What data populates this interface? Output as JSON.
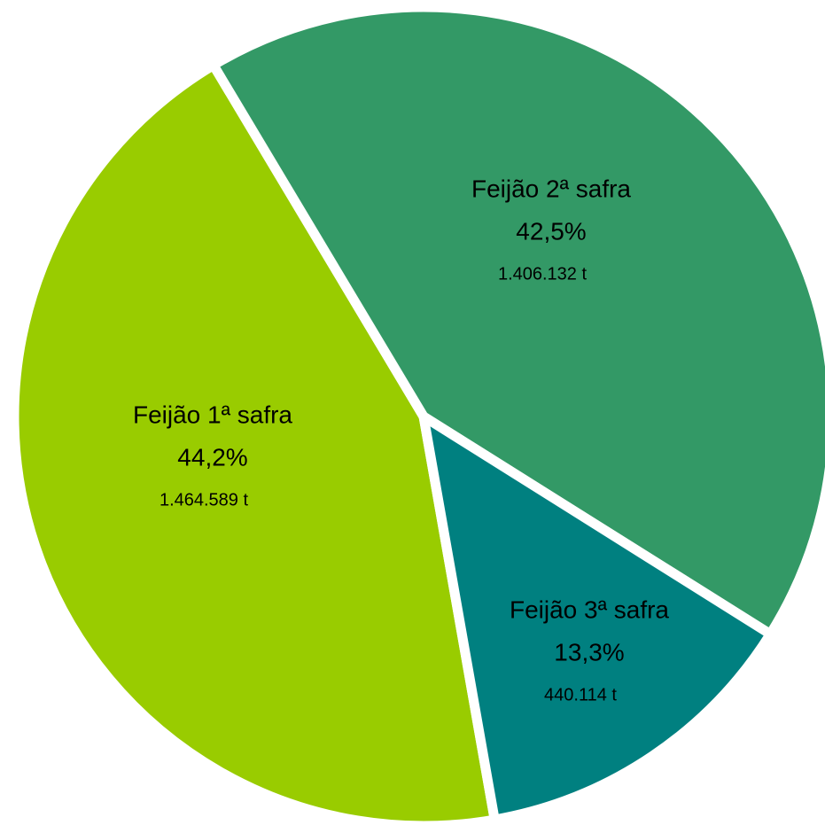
{
  "chart_data": {
    "type": "pie",
    "categories": [
      "Feijão 1ª safra",
      "Feijão 2ª safra",
      "Feijão 3ª safra"
    ],
    "values": [
      44.2,
      42.5,
      13.3
    ],
    "value_labels": [
      "44,2%",
      "42,5%",
      "13,3%"
    ],
    "tonnes": [
      1464589,
      1406132,
      440114
    ],
    "tonnes_labels": [
      "1.464.589 t",
      "1.406.132 t",
      "440.114 t"
    ],
    "colors": [
      "#99cc00",
      "#339966",
      "#008080"
    ]
  }
}
